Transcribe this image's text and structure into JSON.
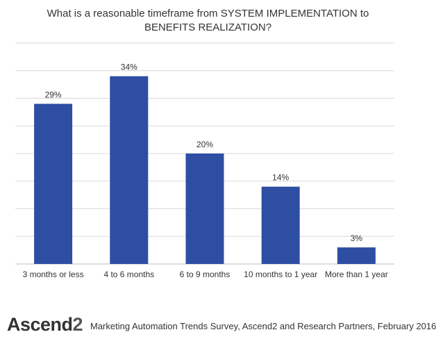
{
  "chart_data": {
    "type": "bar",
    "title_lines": [
      "What is a reasonable timeframe from SYSTEM IMPLEMENTATION to",
      "BENEFITS REALIZATION?"
    ],
    "categories": [
      "3 months or less",
      "4 to 6 months",
      "6 to 9 months",
      "10 months to 1 year",
      "More than 1 year"
    ],
    "values": [
      29,
      34,
      20,
      14,
      3
    ],
    "data_labels": [
      "29%",
      "34%",
      "20%",
      "14%",
      "3%"
    ],
    "ylim": [
      0,
      40
    ],
    "grid": true,
    "bar_color": "#2E4EA3"
  },
  "footer": {
    "logo_text": "Ascend",
    "logo_number": "2",
    "source": "Marketing Automation Trends Survey, Ascend2 and Research Partners, February 2016"
  }
}
